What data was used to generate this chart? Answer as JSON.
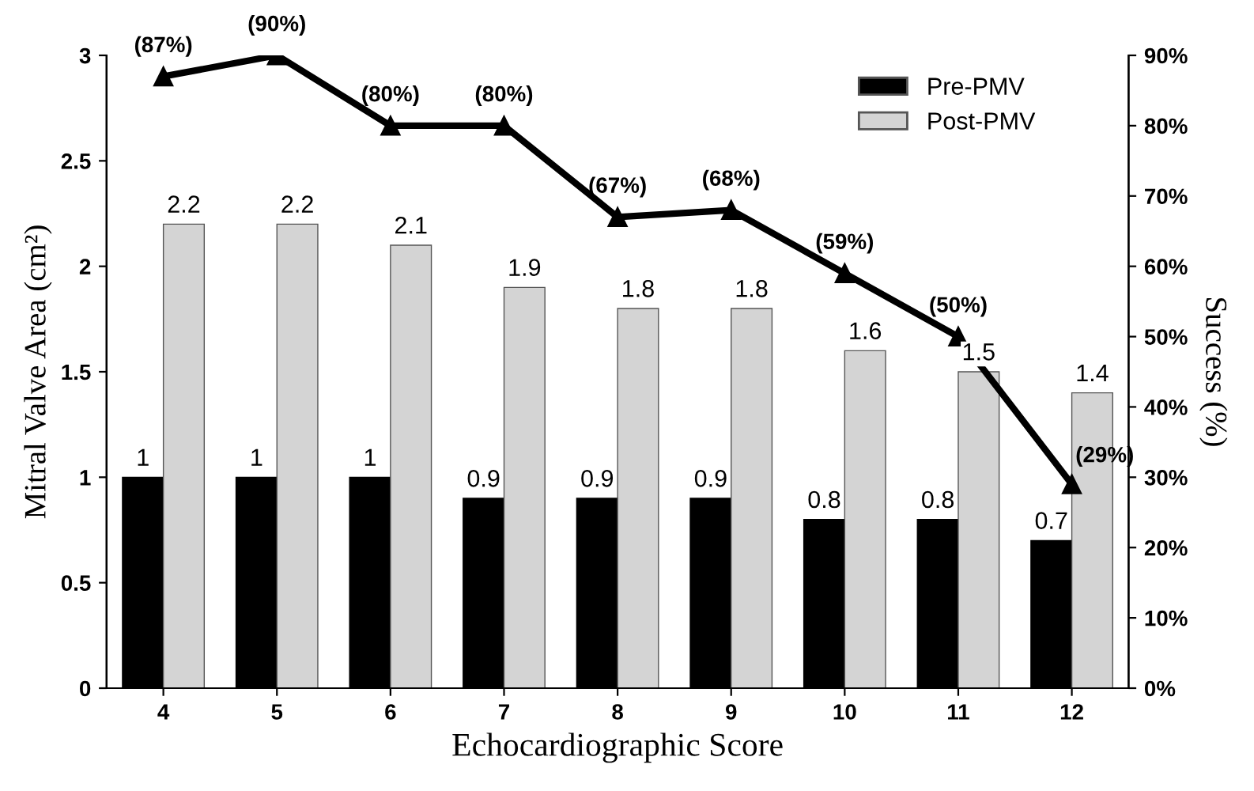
{
  "chart_data": {
    "type": "bar",
    "xlabel": "Echocardiographic Score",
    "ylabel": "Mitral Valve Area (cm²)",
    "y2label": "Success (%)",
    "categories": [
      "4",
      "5",
      "6",
      "7",
      "8",
      "9",
      "10",
      "11",
      "12"
    ],
    "series": [
      {
        "name": "Pre-PMV",
        "color": "#000000",
        "values": [
          1,
          1,
          1,
          0.9,
          0.9,
          0.9,
          0.8,
          0.8,
          0.7
        ],
        "value_labels": [
          "1",
          "1",
          "1",
          "0.9",
          "0.9",
          "0.9",
          "0.8",
          "0.8",
          "0.7"
        ]
      },
      {
        "name": "Post-PMV",
        "color": "#d4d4d4",
        "values": [
          2.2,
          2.2,
          2.1,
          1.9,
          1.8,
          1.8,
          1.6,
          1.5,
          1.4
        ],
        "value_labels": [
          "2.2",
          "2.2",
          "2.1",
          "1.9",
          "1.8",
          "1.8",
          "1.6",
          "1.5",
          "1.4"
        ]
      },
      {
        "type": "line",
        "axis": "y2",
        "color": "#000000",
        "marker": "triangle",
        "line_style": "solid",
        "values": [
          87,
          90,
          80,
          80,
          67,
          68,
          59,
          50,
          29
        ],
        "value_labels": [
          "(87%)",
          "(90%)",
          "(80%)",
          "(80%)",
          "(67%)",
          "(68%)",
          "(59%)",
          "(50%)",
          "(29%)"
        ]
      }
    ],
    "ylim": [
      0,
      3
    ],
    "yticks": [
      0,
      0.5,
      1,
      1.5,
      2,
      2.5,
      3
    ],
    "y2lim": [
      0,
      90
    ],
    "y2ticks": [
      {
        "value": 0,
        "label": "0%"
      },
      {
        "value": 10,
        "label": "10%"
      },
      {
        "value": 20,
        "label": "20%"
      },
      {
        "value": 30,
        "label": "30%"
      },
      {
        "value": 40,
        "label": "40%"
      },
      {
        "value": 50,
        "label": "50%"
      },
      {
        "value": 60,
        "label": "60%"
      },
      {
        "value": 70,
        "label": "70%"
      },
      {
        "value": 80,
        "label": "80%"
      },
      {
        "value": 90,
        "label": "90%"
      }
    ],
    "legend": "top right",
    "grid": false
  }
}
